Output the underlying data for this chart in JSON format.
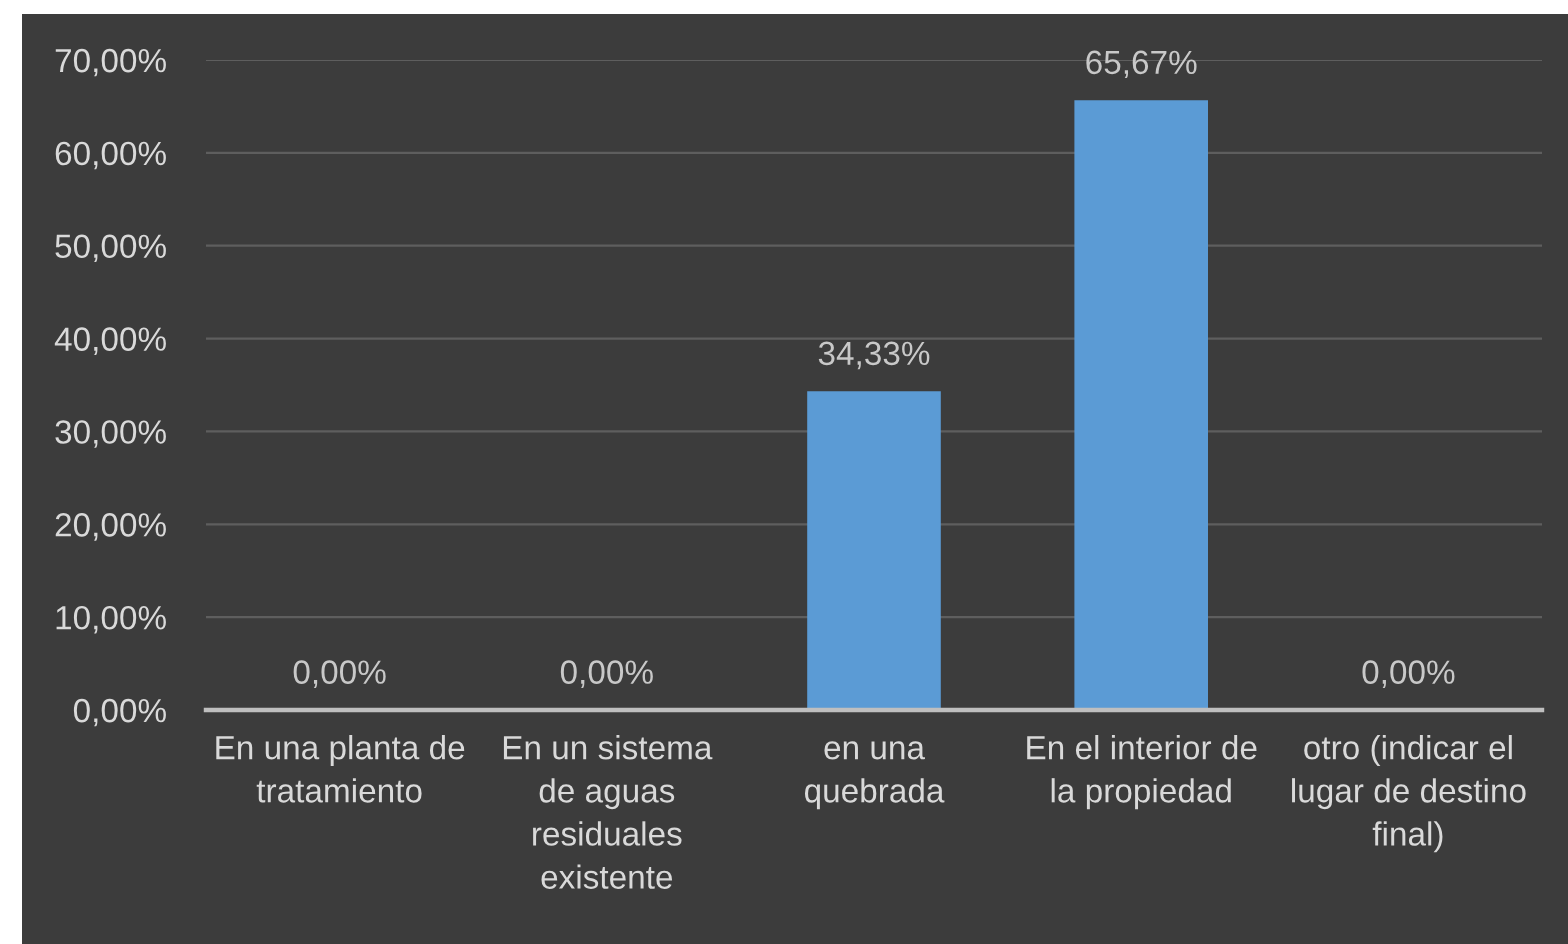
{
  "chart_data": {
    "type": "bar",
    "categories": [
      "En una planta de\ntratamiento",
      "En un sistema\nde aguas\nresiduales\nexistente",
      "en una\nquebrada",
      "En el interior de\nla propiedad",
      "otro (indicar el\nlugar de destino\nfinal)"
    ],
    "values": [
      0,
      0,
      34.33,
      65.67,
      0
    ],
    "color": "#5b9bd5",
    "value_labels": [
      "0,00%",
      "0,00%",
      "34,33%",
      "65,67%",
      "0,00%"
    ],
    "ylim": [
      0,
      70
    ],
    "yticks": [
      {
        "value": 0,
        "label": "0,00%"
      },
      {
        "value": 10,
        "label": "10,00%"
      },
      {
        "value": 20,
        "label": "20,00%"
      },
      {
        "value": 30,
        "label": "30,00%"
      },
      {
        "value": 40,
        "label": "40,00%"
      },
      {
        "value": 50,
        "label": "50,00%"
      },
      {
        "value": 60,
        "label": "60,00%"
      },
      {
        "value": 70,
        "label": "70,00%"
      }
    ],
    "grid": "y",
    "legend": false
  }
}
